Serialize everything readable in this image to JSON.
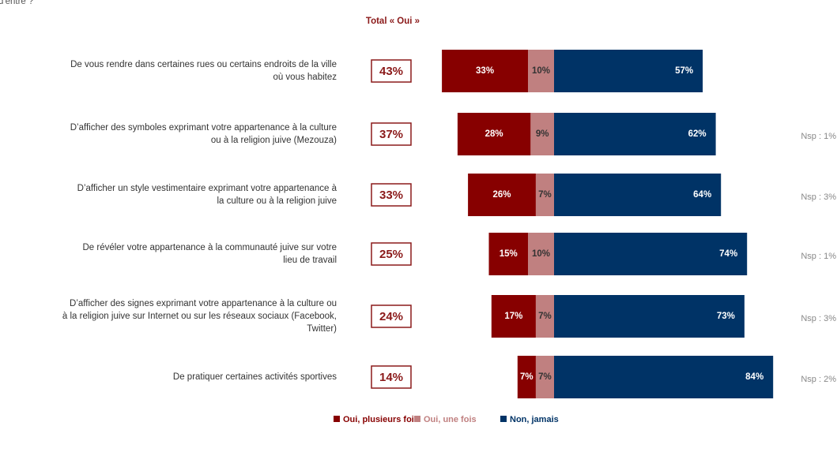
{
  "chart_data": {
    "type": "diverging-bar",
    "subtitle": "d'entre ?",
    "categories": [
      [
        "De vous rendre dans certaines rues ou certains endroits de la ville",
        "où vous habitez"
      ],
      [
        "D’afficher des symboles exprimant votre appartenance à la culture",
        "ou à la religion juive (Mezouza)"
      ],
      [
        "D’afficher un style vestimentaire exprimant votre appartenance à",
        "la culture ou à la religion juive"
      ],
      [
        "De révéler votre appartenance à la communauté juive sur votre",
        "lieu de travail"
      ],
      [
        "D’afficher des signes exprimant votre appartenance à la culture ou",
        "à la religion juive sur Internet ou sur les réseaux sociaux (Facebook,",
        "Twitter)"
      ],
      [
        "De pratiquer certaines activités sportives"
      ]
    ],
    "totals": {
      "title": "Total « Oui »",
      "values": [
        43,
        37,
        33,
        25,
        24,
        14
      ],
      "value_labels": [
        "43%",
        "37%",
        "33%",
        "25%",
        "24%",
        "14%"
      ],
      "color": "#8b1a1a"
    },
    "series": [
      {
        "name": "Oui, plusieurs fois",
        "color": "#870000",
        "side": "negative",
        "values": [
          33,
          28,
          26,
          15,
          17,
          7
        ],
        "value_labels": [
          "33%",
          "28%",
          "26%",
          "15%",
          "17%",
          "7%"
        ]
      },
      {
        "name": "Oui, une fois",
        "color": "#c08080",
        "side": "negative",
        "values": [
          10,
          9,
          7,
          10,
          7,
          7
        ],
        "value_labels": [
          "10%",
          "9%",
          "7%",
          "10%",
          "7%",
          "7%"
        ]
      },
      {
        "name": "Non, jamais",
        "color": "#003366",
        "side": "positive",
        "values": [
          57,
          62,
          64,
          74,
          73,
          84
        ],
        "value_labels": [
          "57%",
          "62%",
          "64%",
          "74%",
          "73%",
          "84%"
        ]
      }
    ],
    "nsp": {
      "values": [
        null,
        1,
        3,
        1,
        3,
        2
      ],
      "value_labels": [
        null,
        "Nsp : 1%",
        "Nsp : 3%",
        "Nsp : 1%",
        "Nsp : 3%",
        "Nsp : 2%"
      ]
    }
  }
}
